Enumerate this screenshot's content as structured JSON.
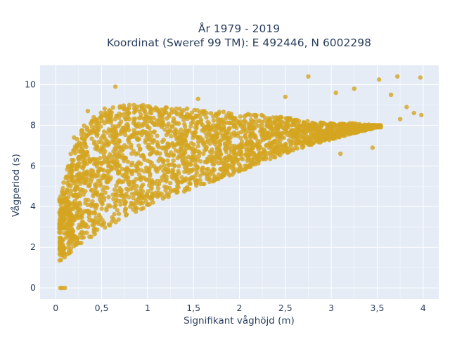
{
  "chart_data": {
    "type": "scatter",
    "title_line1": "År 1979 - 2019",
    "title_line2": "Koordinat (Sweref 99 TM): E 492446, N 6002298",
    "xlabel": "Signifikant våghöjd (m)",
    "ylabel": "Vågperiod (s)",
    "xlim": [
      -0.17,
      4.17
    ],
    "ylim": [
      -0.55,
      10.95
    ],
    "x_ticks": [
      0,
      0.5,
      1,
      1.5,
      2,
      2.5,
      3,
      3.5,
      4
    ],
    "x_tick_labels": [
      "0",
      "0,5",
      "1",
      "1,5",
      "2",
      "2,5",
      "3",
      "3,5",
      "4"
    ],
    "y_ticks": [
      0,
      2,
      4,
      6,
      8,
      10
    ],
    "y_tick_labels": [
      "0",
      "2",
      "4",
      "6",
      "8",
      "10"
    ],
    "grid": true,
    "colors": {
      "marker": "#d4a520",
      "plot_bg": "#e5ecf6",
      "grid": "#ffffff",
      "text": "#2a3f5f"
    },
    "cloud_envelope": {
      "x": [
        0.05,
        0.15,
        0.3,
        0.5,
        0.75,
        1.0,
        1.25,
        1.5,
        1.75,
        2.0,
        2.25,
        2.5,
        2.75,
        3.0,
        3.25,
        3.5
      ],
      "y_low": [
        1.3,
        1.6,
        2.2,
        2.8,
        3.5,
        4.0,
        4.5,
        4.9,
        5.3,
        5.7,
        6.2,
        6.6,
        7.0,
        7.3,
        7.6,
        7.9
      ],
      "y_high": [
        4.5,
        6.5,
        8.0,
        8.8,
        9.0,
        9.0,
        8.9,
        8.8,
        8.7,
        8.6,
        8.5,
        8.4,
        8.2,
        8.1,
        8.1,
        8.0
      ]
    },
    "outliers": [
      [
        0.05,
        0.0
      ],
      [
        0.07,
        0.0
      ],
      [
        0.1,
        0.0
      ],
      [
        0.2,
        7.4
      ],
      [
        0.35,
        8.7
      ],
      [
        0.65,
        9.9
      ],
      [
        1.55,
        9.3
      ],
      [
        2.5,
        9.4
      ],
      [
        2.75,
        10.4
      ],
      [
        3.05,
        9.6
      ],
      [
        3.25,
        9.8
      ],
      [
        3.52,
        10.25
      ],
      [
        3.65,
        9.5
      ],
      [
        3.72,
        10.4
      ],
      [
        3.75,
        8.3
      ],
      [
        3.9,
        8.6
      ],
      [
        3.97,
        10.35
      ],
      [
        3.98,
        8.5
      ],
      [
        3.82,
        8.9
      ],
      [
        3.45,
        6.9
      ],
      [
        3.1,
        6.6
      ]
    ]
  }
}
